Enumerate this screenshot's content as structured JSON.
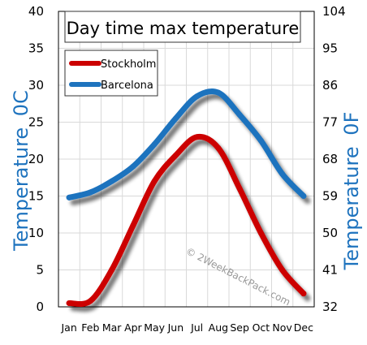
{
  "chart_data": {
    "type": "line",
    "title": "Day time max temperature",
    "ylabel": "Temperature",
    "ylabel_unit": "0C",
    "ylabel_right": "Temperature",
    "ylabel_right_unit": "0F",
    "categories": [
      "Jan",
      "Feb",
      "Mar",
      "Apr",
      "May",
      "Jun",
      "Jul",
      "Aug",
      "Sep",
      "Oct",
      "Nov",
      "Dec"
    ],
    "ylim": [
      0,
      40
    ],
    "yticks": [
      0,
      5,
      10,
      15,
      20,
      25,
      30,
      35,
      40
    ],
    "yticks_right": [
      32,
      41,
      50,
      59,
      68,
      77,
      86,
      95,
      104
    ],
    "series": [
      {
        "name": "Stockholm",
        "color": "#cc0000",
        "values": [
          0.5,
          0.8,
          5.0,
          11.0,
          17.0,
          20.5,
          23.0,
          21.5,
          16.0,
          10.0,
          5.0,
          1.8
        ]
      },
      {
        "name": "Barcelona",
        "color": "#1e73be",
        "values": [
          14.8,
          15.5,
          17.0,
          19.0,
          22.0,
          25.5,
          28.5,
          29.0,
          26.0,
          22.5,
          18.0,
          15.0
        ]
      }
    ],
    "watermark": "© 2WeekBackPack.com",
    "grid": true,
    "legend_position": "top-left"
  }
}
